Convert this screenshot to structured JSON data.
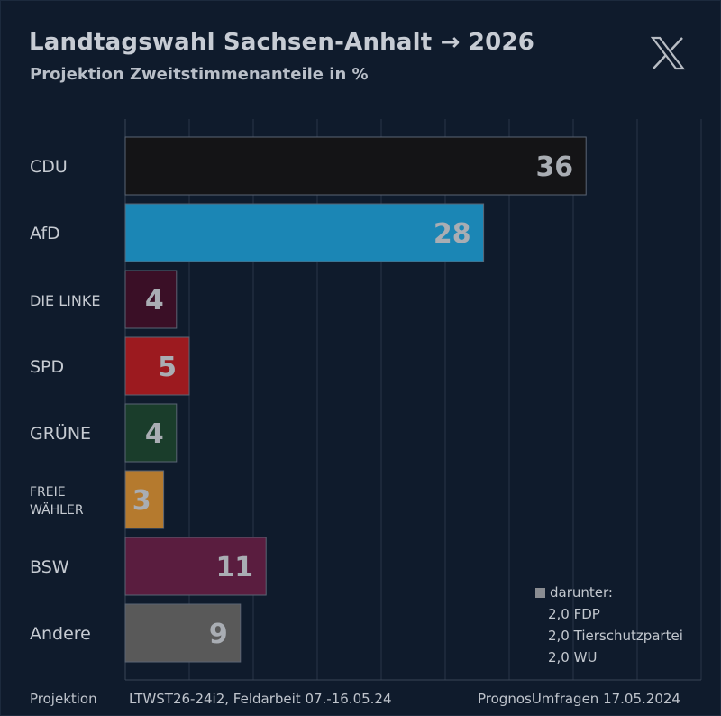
{
  "header": {
    "title": "Landtagswahl Sachsen-Anhalt → 2026",
    "subtitle": "Projektion Zweitstimmenanteile in %"
  },
  "note": {
    "heading": "darunter:",
    "lines": [
      "2,0 FDP",
      "2,0 Tierschutzpartei",
      "2,0 WU"
    ]
  },
  "footer": {
    "left": "Projektion",
    "middle": "LTWST26-24i2, Feldarbeit 07.-16.05.24",
    "right": "PrognosUmfragen 17.05.2024"
  },
  "chart_data": {
    "type": "bar",
    "orientation": "horizontal",
    "title": "Landtagswahl Sachsen-Anhalt → 2026",
    "subtitle": "Projektion Zweitstimmenanteile in %",
    "categories": [
      "CDU",
      "AfD",
      "DIE LINKE",
      "SPD",
      "GRÜNE",
      "FREIE WÄHLER",
      "BSW",
      "Andere"
    ],
    "values": [
      36,
      28,
      4,
      5,
      4,
      3,
      11,
      9
    ],
    "colors": [
      "#141416",
      "#1b86b5",
      "#3a0f26",
      "#9c1a1f",
      "#1a3d2b",
      "#b57a2e",
      "#5a1d3f",
      "#595959"
    ],
    "xlim": [
      0,
      45
    ],
    "grid": true
  },
  "colors": {
    "background": "#0f1b2c",
    "grid": "#2a3647",
    "value_text": "#a9adb3"
  }
}
